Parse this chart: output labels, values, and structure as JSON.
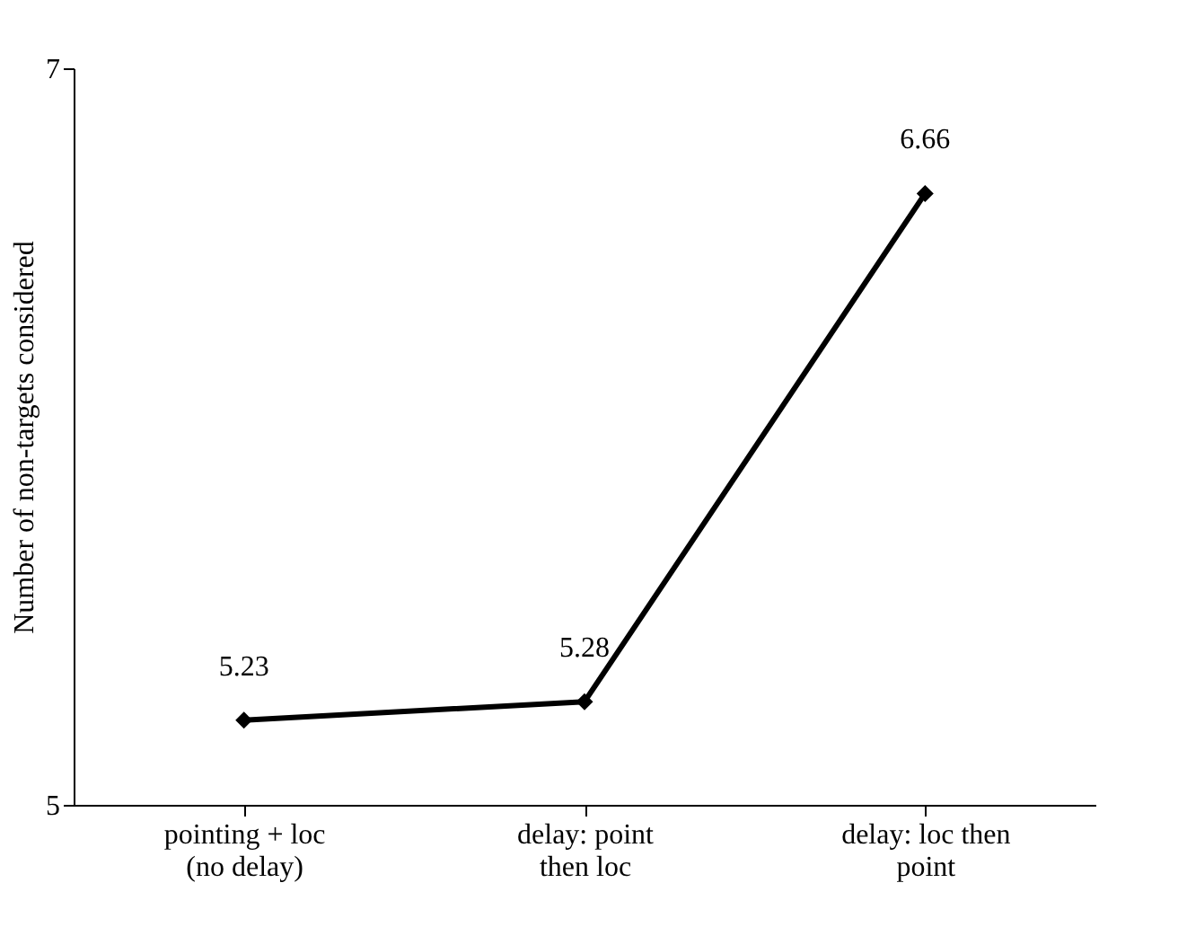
{
  "chart_data": {
    "type": "line",
    "ylabel": "Number of non-targets considered",
    "categories": [
      "pointing + loc\n(no delay)",
      "delay: point\nthen loc",
      "delay: loc then\npoint"
    ],
    "series": [
      {
        "color": "#000000",
        "values": [
          5.23,
          5.28,
          6.66
        ]
      }
    ],
    "ylim": [
      5,
      7
    ],
    "yticks": [
      5,
      7
    ],
    "data_labels": true,
    "marker": "diamond",
    "line_style": "solid",
    "grid": false,
    "legend": false
  }
}
